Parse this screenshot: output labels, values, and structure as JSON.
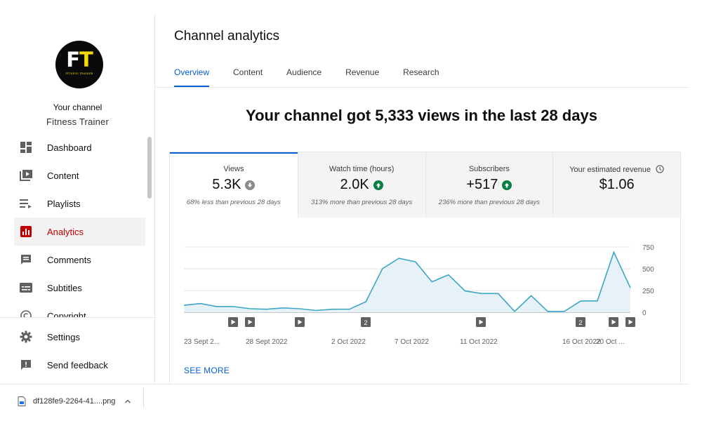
{
  "sidebar": {
    "logo": {
      "letter1": "F",
      "letter2": "T",
      "subtitle": "FITNESS TRAINER"
    },
    "your_channel": "Your channel",
    "channel_name": "Fitness Trainer",
    "items": [
      {
        "label": "Dashboard",
        "icon": "dashboard-icon"
      },
      {
        "label": "Content",
        "icon": "content-icon"
      },
      {
        "label": "Playlists",
        "icon": "playlists-icon"
      },
      {
        "label": "Analytics",
        "icon": "analytics-icon",
        "active": true
      },
      {
        "label": "Comments",
        "icon": "comments-icon"
      },
      {
        "label": "Subtitles",
        "icon": "subtitles-icon"
      },
      {
        "label": "Copyright",
        "icon": "copyright-icon"
      }
    ],
    "bottom_items": [
      {
        "label": "Settings",
        "icon": "gear-icon"
      },
      {
        "label": "Send feedback",
        "icon": "feedback-icon"
      }
    ]
  },
  "main": {
    "title": "Channel analytics",
    "tabs": [
      {
        "label": "Overview",
        "active": true
      },
      {
        "label": "Content"
      },
      {
        "label": "Audience"
      },
      {
        "label": "Revenue"
      },
      {
        "label": "Research"
      }
    ],
    "headline": "Your channel got 5,333 views in the last 28 days",
    "metrics": [
      {
        "label": "Views",
        "value": "5.3K",
        "trend": "down",
        "comparison": "68% less than previous 28 days"
      },
      {
        "label": "Watch time (hours)",
        "value": "2.0K",
        "trend": "up",
        "comparison": "313% more than previous 28 days"
      },
      {
        "label": "Subscribers",
        "value": "+517",
        "trend": "up",
        "comparison": "236% more than previous 28 days"
      },
      {
        "label": "Your estimated revenue",
        "value": "$1.06",
        "trend": "",
        "comparison": ""
      }
    ],
    "see_more": "SEE MORE"
  },
  "chart_data": {
    "type": "area",
    "series": [
      {
        "values": [
          80,
          100,
          65,
          65,
          40,
          35,
          50,
          40,
          20,
          35,
          35,
          120,
          500,
          620,
          580,
          350,
          430,
          245,
          215,
          215,
          10,
          190,
          10,
          10,
          130,
          130,
          690,
          280
        ]
      }
    ],
    "x_tick_labels": [
      "23 Sept 2...",
      "28 Sept 2022",
      "2 Oct 2022",
      "7 Oct 2022",
      "11 Oct 2022",
      "16 Oct 2022",
      "20 Oct ..."
    ],
    "y_tick_labels": [
      "750",
      "500",
      "250",
      "0"
    ],
    "ylim": [
      0,
      750
    ],
    "grid": true,
    "line_color": "#3ea6c6",
    "fill_color": "#e6f2f7",
    "markers": [
      {
        "type": "play",
        "label": ""
      },
      {
        "type": "play",
        "label": ""
      },
      {
        "type": "play",
        "label": ""
      },
      {
        "type": "count",
        "label": "2"
      },
      {
        "type": "play",
        "label": ""
      },
      {
        "type": "count",
        "label": "2"
      },
      {
        "type": "play",
        "label": ""
      },
      {
        "type": "play",
        "label": ""
      }
    ]
  },
  "download": {
    "filename": "df128fe9-2264-41....png"
  },
  "colors": {
    "accent": "#065fd4",
    "active_nav": "#c00000",
    "up": "#0b8043",
    "down": "#8c8c8c"
  }
}
